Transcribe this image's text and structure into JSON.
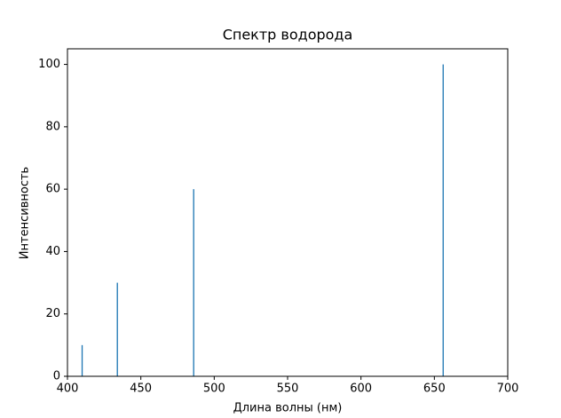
{
  "chart_data": {
    "type": "bar",
    "title": "Спектр водорода",
    "x_label": "Длина волны (нм)",
    "y_label": "Интенсивность",
    "x": [
      410,
      434,
      486,
      656
    ],
    "values": [
      10,
      30,
      60,
      100
    ],
    "color": "#1f77b4",
    "xlim": [
      400,
      700
    ],
    "xticks": [
      400,
      450,
      500,
      550,
      600,
      650,
      700
    ],
    "ylim": [
      0,
      105
    ],
    "yticks": [
      0,
      20,
      40,
      60,
      80,
      100
    ],
    "grid": false
  }
}
